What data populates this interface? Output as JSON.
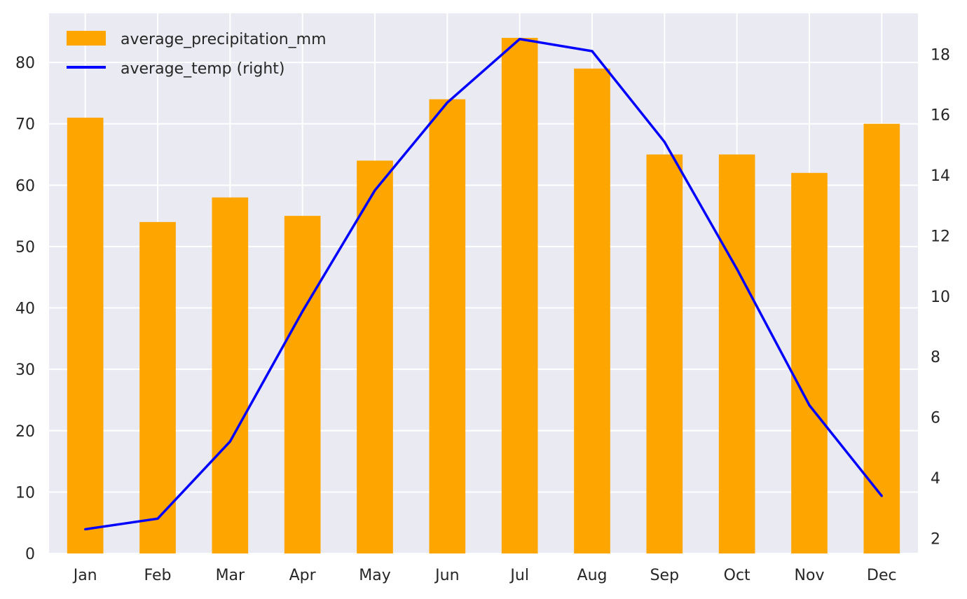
{
  "chart_data": {
    "type": "bar",
    "categories": [
      "Jan",
      "Feb",
      "Mar",
      "Apr",
      "May",
      "Jun",
      "Jul",
      "Aug",
      "Sep",
      "Oct",
      "Nov",
      "Dec"
    ],
    "series": [
      {
        "name": "average_precipitation_mm",
        "type": "bar",
        "axis": "left",
        "color": "#FFA500",
        "values": [
          71,
          54,
          58,
          55,
          64,
          74,
          84,
          79,
          65,
          65,
          62,
          70
        ]
      },
      {
        "name": "average_temp (right)",
        "type": "line",
        "axis": "right",
        "color": "#0000FF",
        "values": [
          2.3,
          2.65,
          5.2,
          9.5,
          13.5,
          16.4,
          18.5,
          18.1,
          15.1,
          10.9,
          6.4,
          3.4
        ]
      }
    ],
    "left_axis": {
      "ylim": [
        0,
        88
      ],
      "ticks": [
        0,
        10,
        20,
        30,
        40,
        50,
        60,
        70,
        80
      ]
    },
    "right_axis": {
      "ylim": [
        1.5,
        19.35
      ],
      "ticks": [
        2,
        4,
        6,
        8,
        10,
        12,
        14,
        16,
        18
      ]
    },
    "grid": true,
    "legend_position": "top-left",
    "background_color": "#EAEAF2",
    "grid_color": "#FFFFFF"
  }
}
